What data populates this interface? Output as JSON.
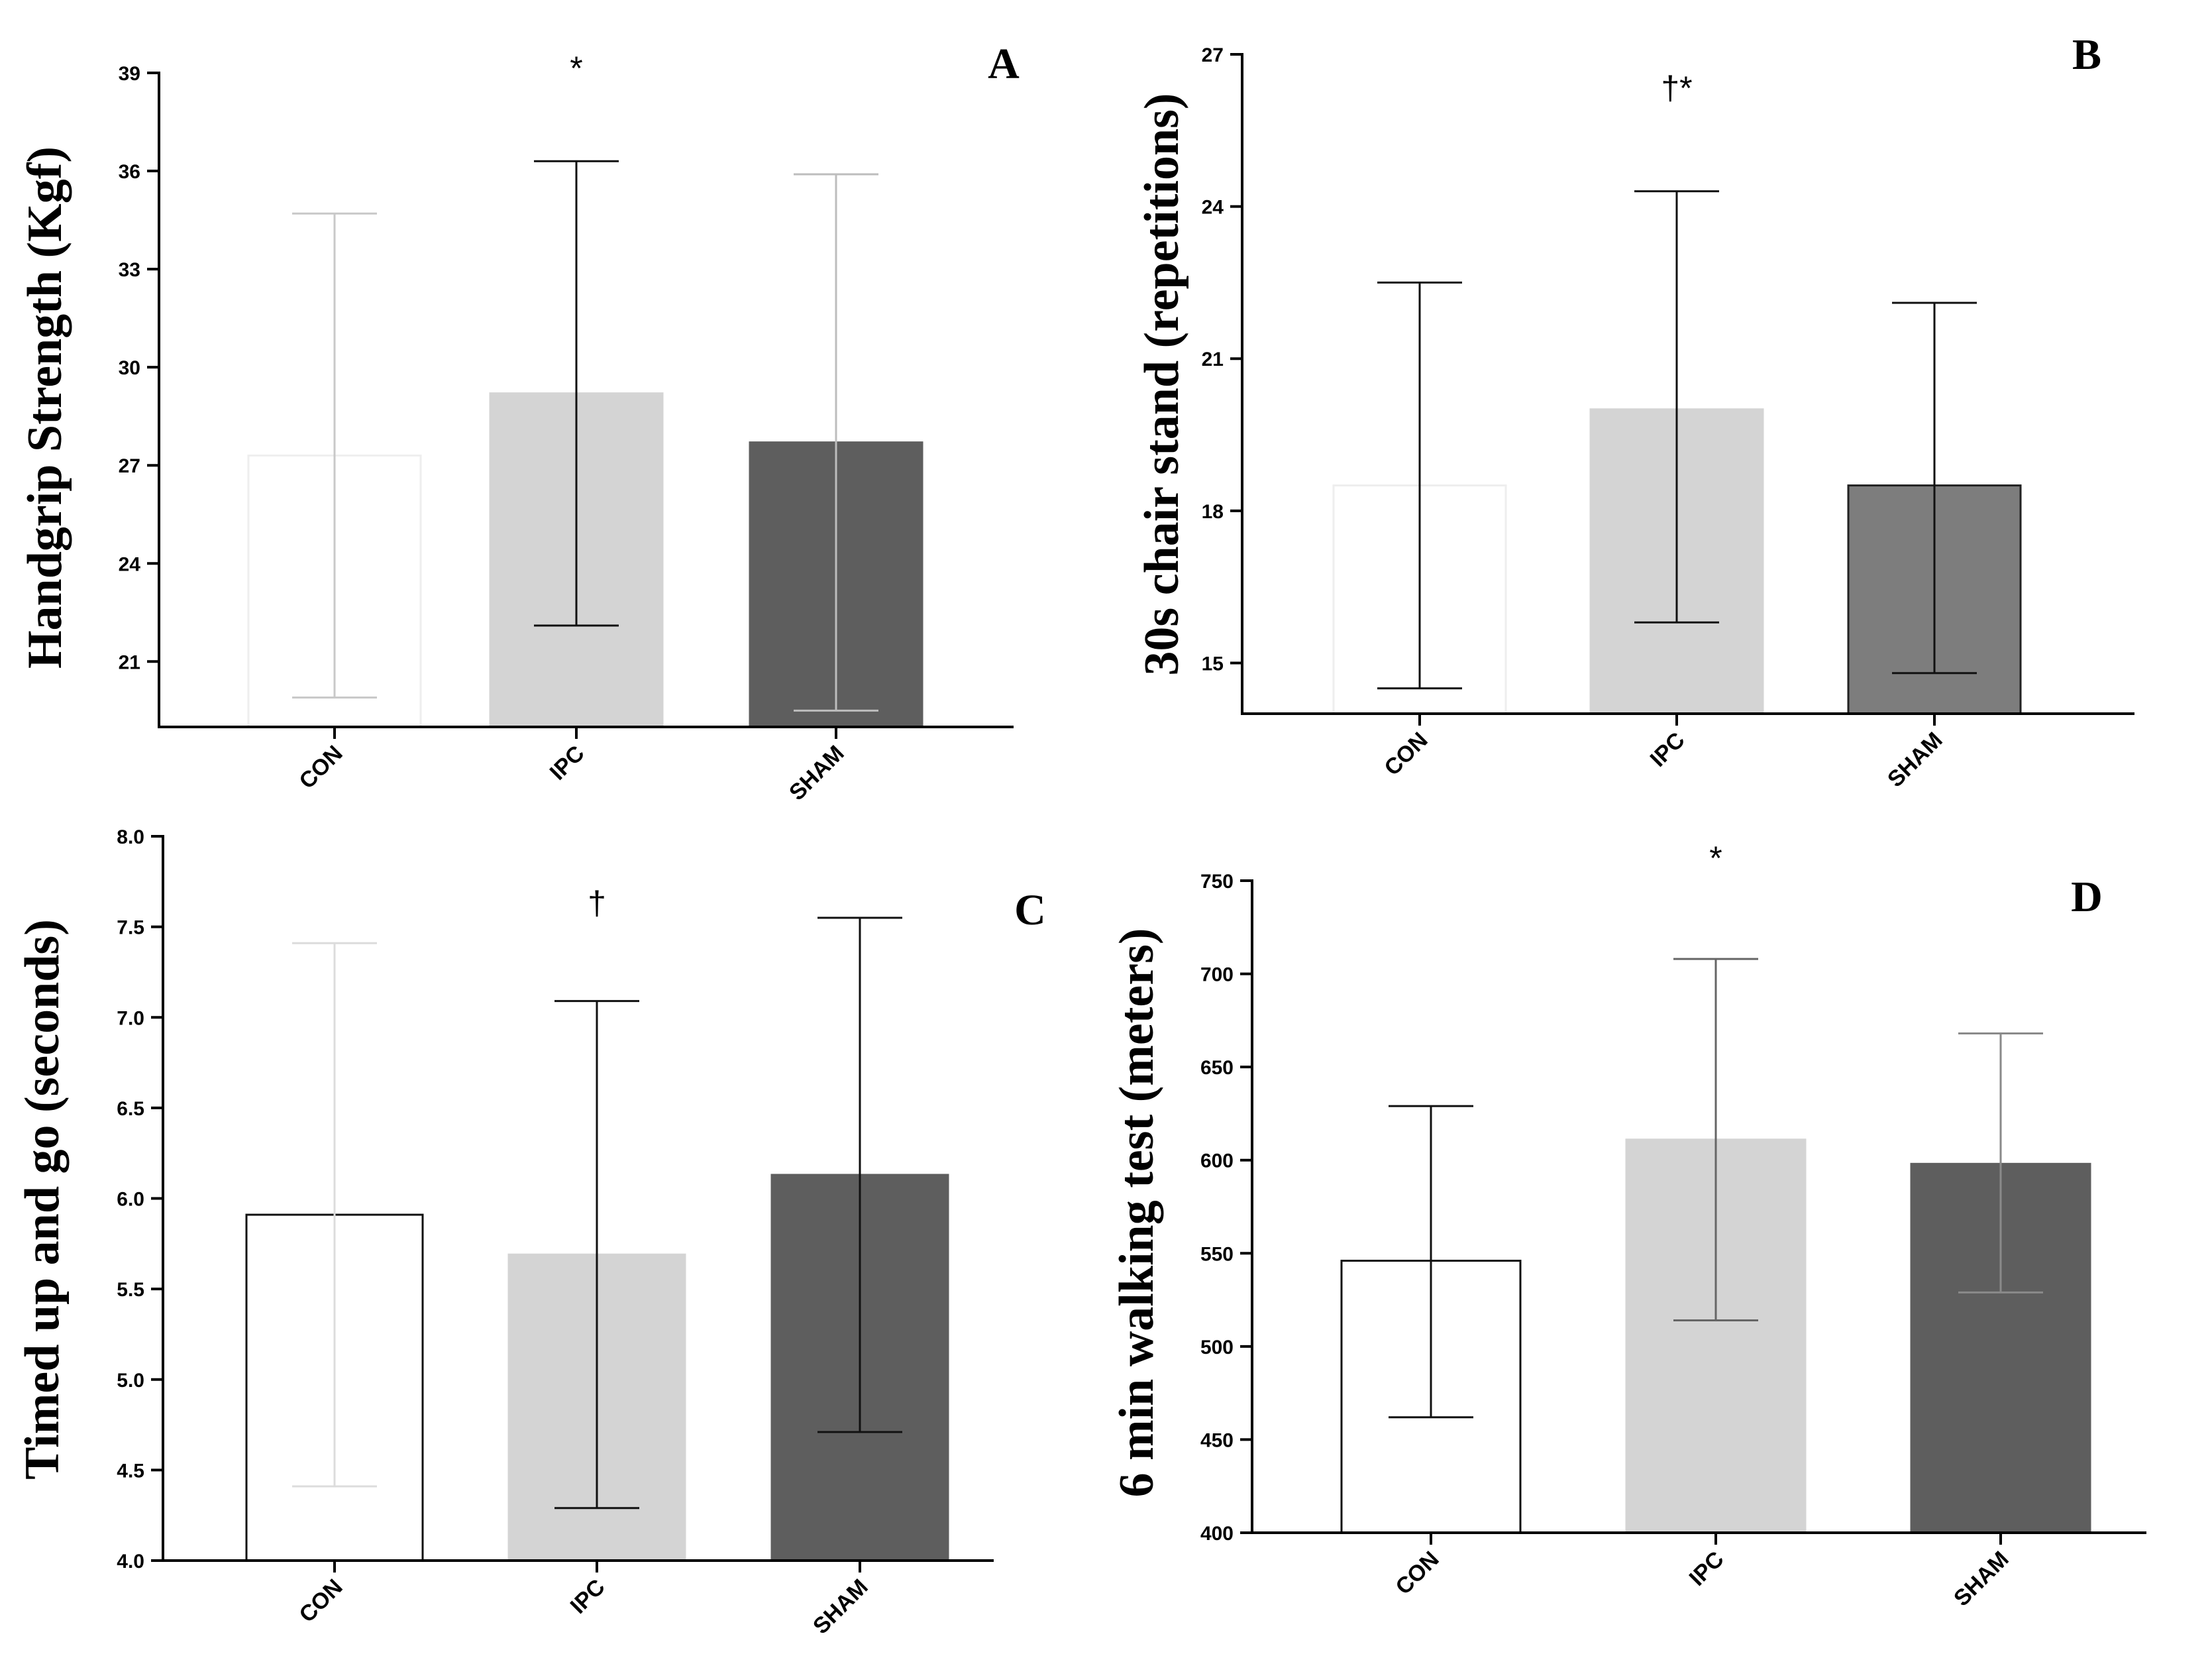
{
  "chart_data": [
    {
      "type": "bar",
      "panel": "A",
      "categories": [
        "CON",
        "IPC",
        "SHAM"
      ],
      "values": [
        27.3,
        29.2,
        27.7
      ],
      "error_upper": [
        34.7,
        36.3,
        35.9
      ],
      "error_lower": [
        19.9,
        22.1,
        19.5
      ],
      "bar_colors": [
        "#ffffff",
        "#d4d4d4",
        "#5e5e5e"
      ],
      "bar_edge_colors": [
        "#eeeeee",
        "#d4d4d4",
        "#5e5e5e"
      ],
      "whisker_colors": [
        "#c8c8c8",
        "#111111",
        "#bdbdbd"
      ],
      "ylabel": "Handgrip Strength (Kgf)",
      "xlabel": "",
      "ylim": [
        19,
        39
      ],
      "yticks": [
        "21",
        "24",
        "27",
        "30",
        "33",
        "36",
        "39"
      ],
      "annotations": [
        {
          "category": "IPC",
          "text": "*"
        }
      ]
    },
    {
      "type": "bar",
      "panel": "B",
      "categories": [
        "CON",
        "IPC",
        "SHAM"
      ],
      "values": [
        18.5,
        20.0,
        18.5
      ],
      "error_upper": [
        22.5,
        24.3,
        22.1
      ],
      "error_lower": [
        14.5,
        15.8,
        14.8
      ],
      "bar_colors": [
        "#ffffff",
        "#d4d4d4",
        "#7d7d7d"
      ],
      "bar_edge_colors": [
        "#eeeeee",
        "#d4d4d4",
        "#222222"
      ],
      "whisker_colors": [
        "#111111",
        "#111111",
        "#111111"
      ],
      "ylabel": "30s chair stand (repetitions)",
      "xlabel": "",
      "ylim": [
        14,
        27
      ],
      "yticks": [
        "15",
        "18",
        "21",
        "24",
        "27"
      ],
      "annotations": [
        {
          "category": "IPC",
          "text": "†*"
        }
      ]
    },
    {
      "type": "bar",
      "panel": "C",
      "categories": [
        "CON",
        "IPC",
        "SHAM"
      ],
      "values": [
        5.91,
        5.69,
        6.13
      ],
      "error_upper": [
        7.41,
        7.09,
        7.55
      ],
      "error_lower": [
        4.41,
        4.29,
        4.71
      ],
      "bar_colors": [
        "#ffffff",
        "#d4d4d4",
        "#5e5e5e"
      ],
      "bar_edge_colors": [
        "#111111",
        "#d4d4d4",
        "#5e5e5e"
      ],
      "whisker_colors": [
        "#dcdcdc",
        "#111111",
        "#111111"
      ],
      "ylabel": "Timed up and go (seconds)",
      "xlabel": "",
      "ylim": [
        4.0,
        8.0
      ],
      "yticks": [
        "4.0",
        "4.5",
        "5.0",
        "5.5",
        "6.0",
        "6.5",
        "7.0",
        "7.5",
        "8.0"
      ],
      "annotations": [
        {
          "category": "IPC",
          "text": "†"
        }
      ]
    },
    {
      "type": "bar",
      "panel": "D",
      "categories": [
        "CON",
        "IPC",
        "SHAM"
      ],
      "values": [
        546,
        611,
        598
      ],
      "error_upper": [
        629,
        708,
        668
      ],
      "error_lower": [
        462,
        514,
        529
      ],
      "bar_colors": [
        "#ffffff",
        "#d4d4d4",
        "#5e5e5e"
      ],
      "bar_edge_colors": [
        "#111111",
        "#d4d4d4",
        "#5e5e5e"
      ],
      "whisker_colors": [
        "#111111",
        "#666666",
        "#8a8a8a"
      ],
      "ylabel": "6 min walking test (meters)",
      "xlabel": "",
      "ylim": [
        400,
        750
      ],
      "yticks": [
        "400",
        "450",
        "500",
        "550",
        "600",
        "650",
        "700",
        "750"
      ],
      "annotations": [
        {
          "category": "IPC",
          "text": "*"
        }
      ]
    }
  ]
}
